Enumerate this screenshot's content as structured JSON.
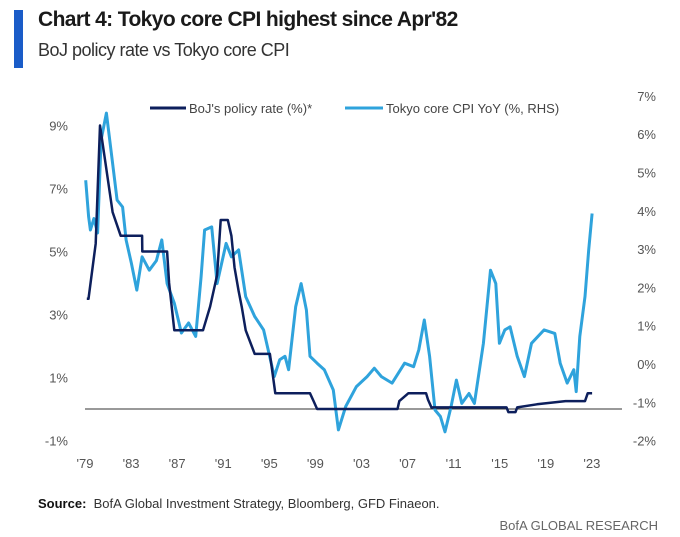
{
  "header": {
    "title": "Chart 4: Tokyo core CPI highest since Apr'82",
    "subtitle": "BoJ policy rate vs Tokyo core CPI",
    "accent_color": "#1a5cc8"
  },
  "footer": {
    "source_label": "Source:",
    "source_text": "BofA Global Investment Strategy, Bloomberg, GFD Finaeon.",
    "brand": "BofA GLOBAL RESEARCH"
  },
  "chart_data": {
    "type": "line",
    "title": "Chart 4: Tokyo core CPI highest since Apr'82",
    "subtitle": "BoJ policy rate vs Tokyo core CPI",
    "legend_position": "top",
    "grid": false,
    "x_tick_labels": [
      "'79",
      "'83",
      "'87",
      "'91",
      "'95",
      "'99",
      "'03",
      "'07",
      "'11",
      "'15",
      "'19",
      "'23"
    ],
    "x_ticks": [
      1979,
      1983,
      1987,
      1991,
      1995,
      1999,
      2003,
      2007,
      2011,
      2015,
      2019,
      2023
    ],
    "y_left": {
      "ticks": [
        9,
        7,
        5,
        3,
        1,
        -1
      ],
      "tick_labels": [
        "9%",
        "7%",
        "5%",
        "3%",
        "1%",
        "-1%"
      ],
      "range": [
        -1,
        10
      ]
    },
    "y_right": {
      "ticks": [
        7,
        6,
        5,
        4,
        3,
        2,
        1,
        0,
        -1,
        -2
      ],
      "tick_labels": [
        "7%",
        "6%",
        "5%",
        "4%",
        "3%",
        "2%",
        "1%",
        "0%",
        "-1%",
        "-2%"
      ],
      "range": [
        -2,
        7
      ]
    },
    "reference_line": {
      "axis": "left",
      "value": 0
    },
    "series": [
      {
        "name": "BoJ's policy rate (%)*",
        "axis": "left",
        "color": "#0d1f5c",
        "points": [
          [
            1979.16,
            3.5
          ],
          [
            1979.3,
            3.5
          ],
          [
            1979.93,
            5.25
          ],
          [
            1980.3,
            9.0
          ],
          [
            1980.7,
            8.0
          ],
          [
            1981.4,
            6.25
          ],
          [
            1982.1,
            5.5
          ],
          [
            1983.96,
            5.5
          ],
          [
            1983.97,
            5.0
          ],
          [
            1986.13,
            5.0
          ],
          [
            1986.3,
            4.0
          ],
          [
            1986.75,
            2.5
          ],
          [
            1989.24,
            2.5
          ],
          [
            1989.86,
            3.25
          ],
          [
            1990.47,
            4.25
          ],
          [
            1990.78,
            6.0
          ],
          [
            1991.4,
            6.0
          ],
          [
            1991.71,
            5.5
          ],
          [
            1991.98,
            4.5
          ],
          [
            1992.33,
            3.75
          ],
          [
            1992.6,
            3.25
          ],
          [
            1992.95,
            2.5
          ],
          [
            1993.73,
            1.75
          ],
          [
            1995.05,
            1.75
          ],
          [
            1995.52,
            0.5
          ],
          [
            1998.53,
            0.5
          ],
          [
            1998.84,
            0.25
          ],
          [
            1999.15,
            0.0
          ],
          [
            2006.13,
            0.0
          ],
          [
            2006.28,
            0.25
          ],
          [
            2007.06,
            0.5
          ],
          [
            2008.61,
            0.5
          ],
          [
            2008.77,
            0.3
          ],
          [
            2009.07,
            0.05
          ],
          [
            2015.59,
            0.05
          ],
          [
            2015.75,
            -0.1
          ],
          [
            2016.37,
            -0.1
          ],
          [
            2016.52,
            0.05
          ],
          [
            2018.23,
            0.15
          ],
          [
            2020.71,
            0.25
          ],
          [
            2022.4,
            0.25
          ],
          [
            2022.64,
            0.5
          ],
          [
            2023.02,
            0.5
          ]
        ]
      },
      {
        "name": "Tokyo core CPI YoY (%, RHS)",
        "axis": "right",
        "color": "#2fa3dc",
        "points": [
          [
            1979.06,
            4.8
          ],
          [
            1979.31,
            3.85
          ],
          [
            1979.47,
            3.5
          ],
          [
            1979.77,
            3.8
          ],
          [
            1980.09,
            3.42
          ],
          [
            1980.4,
            5.85
          ],
          [
            1980.86,
            6.55
          ],
          [
            1981.33,
            5.41
          ],
          [
            1981.79,
            4.28
          ],
          [
            1982.26,
            4.1
          ],
          [
            1982.57,
            3.24
          ],
          [
            1983.03,
            2.63
          ],
          [
            1983.5,
            1.93
          ],
          [
            1983.96,
            2.8
          ],
          [
            1984.58,
            2.45
          ],
          [
            1985.2,
            2.7
          ],
          [
            1985.67,
            3.24
          ],
          [
            1986.13,
            2.1
          ],
          [
            1986.75,
            1.59
          ],
          [
            1987.37,
            0.81
          ],
          [
            1987.99,
            1.07
          ],
          [
            1988.61,
            0.72
          ],
          [
            1989.08,
            2.28
          ],
          [
            1989.38,
            3.5
          ],
          [
            1990.0,
            3.58
          ],
          [
            1990.47,
            2.1
          ],
          [
            1991.25,
            3.15
          ],
          [
            1991.71,
            2.8
          ],
          [
            1992.33,
            2.98
          ],
          [
            1992.95,
            1.76
          ],
          [
            1993.73,
            1.24
          ],
          [
            1994.5,
            0.89
          ],
          [
            1995.43,
            -0.33
          ],
          [
            1995.9,
            0.11
          ],
          [
            1996.36,
            0.2
          ],
          [
            1996.67,
            -0.15
          ],
          [
            1997.29,
            1.5
          ],
          [
            1997.76,
            2.1
          ],
          [
            1998.22,
            1.41
          ],
          [
            1998.53,
            0.2
          ],
          [
            1999.15,
            0.02
          ],
          [
            1999.77,
            -0.15
          ],
          [
            2000.55,
            -0.68
          ],
          [
            2001.0,
            -1.72
          ],
          [
            2001.63,
            -1.11
          ],
          [
            2002.56,
            -0.59
          ],
          [
            2003.49,
            -0.33
          ],
          [
            2004.11,
            -0.11
          ],
          [
            2004.73,
            -0.33
          ],
          [
            2005.66,
            -0.5
          ],
          [
            2006.74,
            0.02
          ],
          [
            2007.52,
            -0.07
          ],
          [
            2007.98,
            0.37
          ],
          [
            2008.45,
            1.15
          ],
          [
            2008.91,
            0.2
          ],
          [
            2009.38,
            -1.2
          ],
          [
            2009.85,
            -1.37
          ],
          [
            2010.25,
            -1.77
          ],
          [
            2010.78,
            -1.11
          ],
          [
            2011.24,
            -0.42
          ],
          [
            2011.71,
            -1.03
          ],
          [
            2012.33,
            -0.77
          ],
          [
            2012.8,
            -1.03
          ],
          [
            2013.58,
            0.54
          ],
          [
            2014.2,
            2.45
          ],
          [
            2014.66,
            2.1
          ],
          [
            2014.97,
            0.54
          ],
          [
            2015.44,
            0.89
          ],
          [
            2015.9,
            0.97
          ],
          [
            2016.52,
            0.2
          ],
          [
            2017.14,
            -0.33
          ],
          [
            2017.76,
            0.54
          ],
          [
            2018.85,
            0.89
          ],
          [
            2019.78,
            0.8
          ],
          [
            2020.25,
            0.02
          ],
          [
            2020.86,
            -0.5
          ],
          [
            2021.43,
            -0.15
          ],
          [
            2021.64,
            -0.72
          ],
          [
            2021.95,
            0.72
          ],
          [
            2022.4,
            1.76
          ],
          [
            2022.72,
            2.98
          ],
          [
            2023.02,
            3.93
          ]
        ]
      }
    ]
  }
}
